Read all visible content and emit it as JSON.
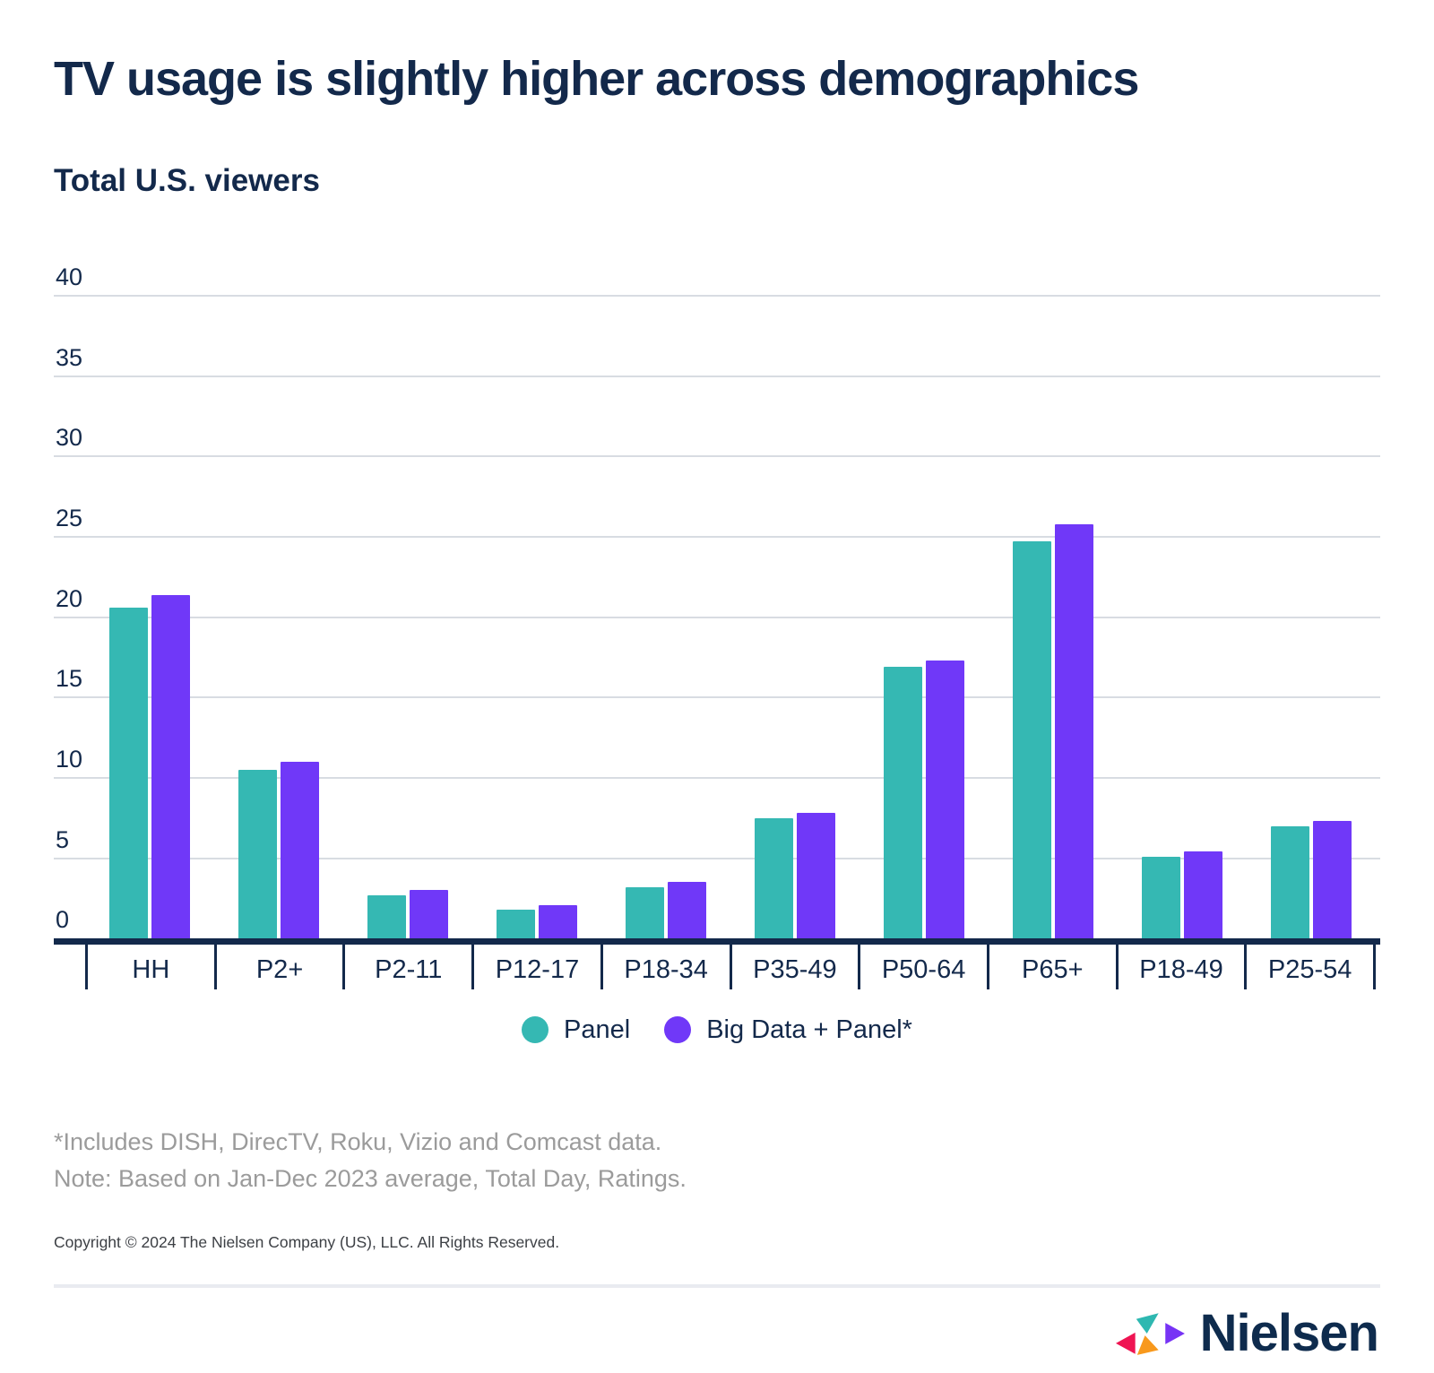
{
  "page": {
    "title": "TV usage is slightly higher across demographics",
    "subtitle": "Total U.S. viewers",
    "footnote_line1": "*Includes DISH, DirecTV, Roku, Vizio and Comcast data.",
    "footnote_line2": "Note: Based on Jan-Dec 2023 average, Total Day, Ratings.",
    "copyright": "Copyright © 2024 The Nielsen Company (US), LLC. All Rights Reserved.",
    "logo_text": "Nielsen"
  },
  "colors": {
    "navy": "#13294B",
    "teal": "#35B8B3",
    "purple": "#7038F8",
    "gridline": "#D8DCE2",
    "footnote_gray": "#9B9B9B",
    "copyright_gray": "#3D4045",
    "divider": "#E9EBF0",
    "logo_pink": "#EF1452",
    "logo_teal": "#2EB8B1",
    "logo_orange": "#F8991D",
    "logo_purple": "#7733F5"
  },
  "chart_data": {
    "type": "bar",
    "title": "TV usage is slightly higher across demographics",
    "subtitle": "Total U.S. viewers",
    "categories": [
      "HH",
      "P2+",
      "P2-11",
      "P12-17",
      "P18-34",
      "P35-49",
      "P50-64",
      "P65+",
      "P18-49",
      "P25-54"
    ],
    "series": [
      {
        "name": "Panel",
        "color_key": "teal",
        "values": [
          20.6,
          10.5,
          2.7,
          1.8,
          3.2,
          7.5,
          16.9,
          24.7,
          5.1,
          7.0
        ]
      },
      {
        "name": "Big Data + Panel*",
        "color_key": "purple",
        "values": [
          21.4,
          11.0,
          3.0,
          2.1,
          3.5,
          7.8,
          17.3,
          25.8,
          5.4,
          7.3
        ]
      }
    ],
    "y_ticks": [
      0,
      5,
      10,
      15,
      20,
      25,
      30,
      35,
      40
    ],
    "ylim": [
      0,
      40
    ],
    "xlabel": "",
    "ylabel": "",
    "grid": true,
    "legend_position": "bottom"
  }
}
